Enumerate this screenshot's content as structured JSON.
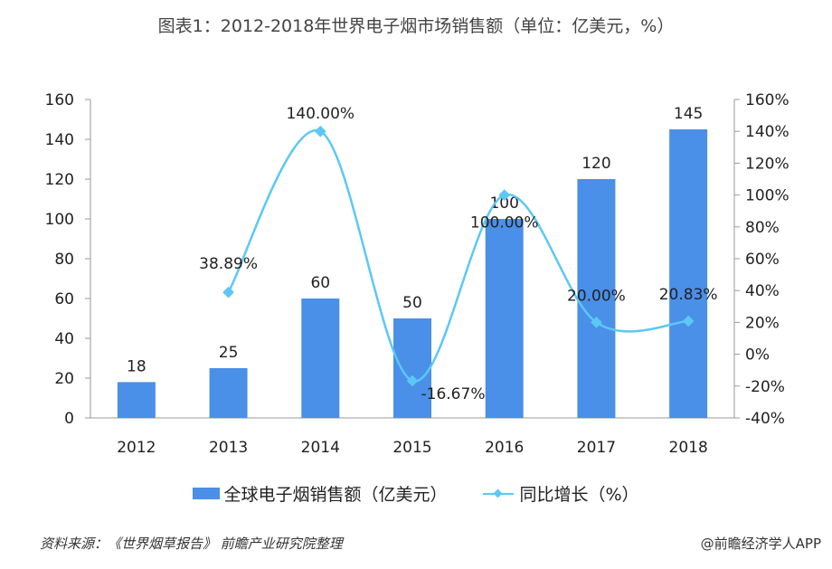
{
  "title": "图表1：2012-2018年世界电子烟市场销售额（单位：亿美元，%）",
  "chart_data": {
    "type": "bar+line",
    "title": "图表1：2012-2018年世界电子烟市场销售额（单位：亿美元，%）",
    "categories": [
      "2012",
      "2013",
      "2014",
      "2015",
      "2016",
      "2017",
      "2018"
    ],
    "series": [
      {
        "name": "全球电子烟销售额（亿美元）",
        "type": "bar",
        "axis": "left",
        "values": [
          18,
          25,
          60,
          50,
          100,
          120,
          145
        ],
        "labels": [
          "18",
          "25",
          "60",
          "50",
          "100",
          "120",
          "145"
        ],
        "color": "#4a8fe8"
      },
      {
        "name": "同比增长（%）",
        "type": "line",
        "axis": "right",
        "smooth": true,
        "values": [
          null,
          38.89,
          140.0,
          -16.67,
          100.0,
          20.0,
          20.83
        ],
        "labels": [
          "",
          "38.89%",
          "140.00%",
          "-16.67%",
          "100.00%",
          "20.00%",
          "20.83%"
        ],
        "color": "#5bc8f5"
      }
    ],
    "ylim_left": [
      0,
      160
    ],
    "yticks_left": [
      "0",
      "20",
      "40",
      "60",
      "80",
      "100",
      "120",
      "140",
      "160"
    ],
    "ylim_right": [
      -40,
      160
    ],
    "yticks_right": [
      "-40%",
      "-20%",
      "0%",
      "20%",
      "40%",
      "60%",
      "80%",
      "100%",
      "120%",
      "140%",
      "160%"
    ],
    "grid": false,
    "legend": "bottom"
  },
  "legend": {
    "bar": "全球电子烟销售额（亿美元）",
    "line": "同比增长（%）"
  },
  "footer": {
    "source": "资料来源：《世界烟草报告》 前瞻产业研究院整理",
    "credit": "@前瞻经济学人APP"
  }
}
